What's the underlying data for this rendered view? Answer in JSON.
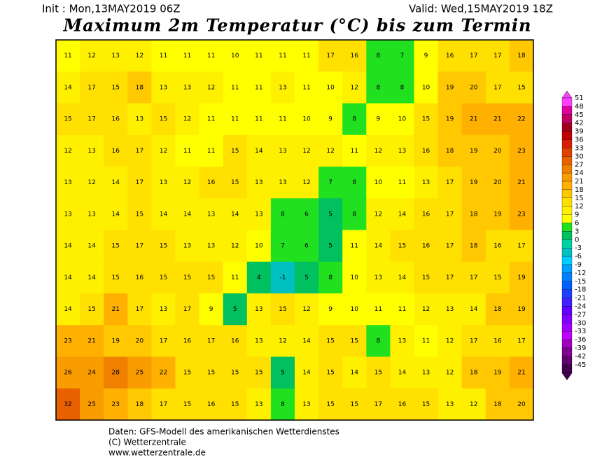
{
  "header": {
    "init": "Init : Mon,13MAY2019 06Z",
    "valid": "Valid: Wed,15MAY2019 18Z",
    "title": "Maximum 2m Temperatur (°C) bis zum Termin"
  },
  "map": {
    "rows": [
      [
        11,
        12,
        13,
        12,
        11,
        11,
        11,
        10,
        11,
        11,
        11,
        17,
        16,
        8,
        7,
        9,
        16,
        17,
        17,
        18
      ],
      [
        14,
        17,
        15,
        18,
        13,
        13,
        12,
        11,
        11,
        13,
        11,
        10,
        12,
        8,
        8,
        10,
        19,
        20,
        17,
        15
      ],
      [
        15,
        17,
        16,
        13,
        15,
        12,
        11,
        11,
        11,
        11,
        10,
        9,
        8,
        9,
        10,
        15,
        19,
        21,
        21,
        22
      ],
      [
        12,
        13,
        16,
        17,
        12,
        11,
        11,
        15,
        14,
        13,
        12,
        12,
        11,
        12,
        13,
        16,
        18,
        19,
        20,
        23
      ],
      [
        13,
        12,
        14,
        17,
        13,
        12,
        16,
        15,
        13,
        13,
        12,
        7,
        8,
        10,
        11,
        13,
        17,
        19,
        20,
        21
      ],
      [
        13,
        13,
        14,
        15,
        14,
        14,
        13,
        14,
        13,
        8,
        6,
        5,
        8,
        12,
        14,
        16,
        17,
        18,
        19,
        23
      ],
      [
        14,
        14,
        15,
        17,
        15,
        13,
        13,
        12,
        10,
        7,
        6,
        5,
        11,
        14,
        15,
        16,
        17,
        18,
        16,
        17
      ],
      [
        14,
        14,
        15,
        16,
        15,
        15,
        15,
        11,
        4,
        -1,
        5,
        8,
        10,
        13,
        14,
        15,
        17,
        17,
        15,
        19
      ],
      [
        14,
        15,
        21,
        17,
        13,
        17,
        9,
        5,
        13,
        15,
        12,
        9,
        10,
        11,
        11,
        12,
        13,
        14,
        18,
        19
      ],
      [
        23,
        21,
        19,
        20,
        17,
        16,
        17,
        16,
        13,
        12,
        14,
        15,
        15,
        8,
        13,
        11,
        12,
        17,
        16,
        17
      ],
      [
        26,
        24,
        28,
        25,
        22,
        15,
        15,
        15,
        15,
        5,
        14,
        15,
        14,
        15,
        14,
        13,
        12,
        18,
        19,
        21
      ],
      [
        32,
        25,
        23,
        18,
        17,
        15,
        16,
        15,
        13,
        8,
        13,
        15,
        15,
        17,
        16,
        15,
        13,
        12,
        18,
        20
      ]
    ]
  },
  "colorbar": {
    "labels": [
      51,
      48,
      45,
      42,
      39,
      36,
      33,
      30,
      27,
      24,
      21,
      18,
      15,
      12,
      9,
      6,
      3,
      0,
      -3,
      -6,
      -9,
      -12,
      -15,
      -18,
      -21,
      -24,
      -27,
      -30,
      -33,
      -36,
      -39,
      -42,
      -45
    ]
  },
  "footer": {
    "lines": [
      "Daten: GFS-Modell des amerikanischen Wetterdienstes",
      "(C) Wetterzentrale",
      "www.wetterzentrale.de"
    ]
  }
}
